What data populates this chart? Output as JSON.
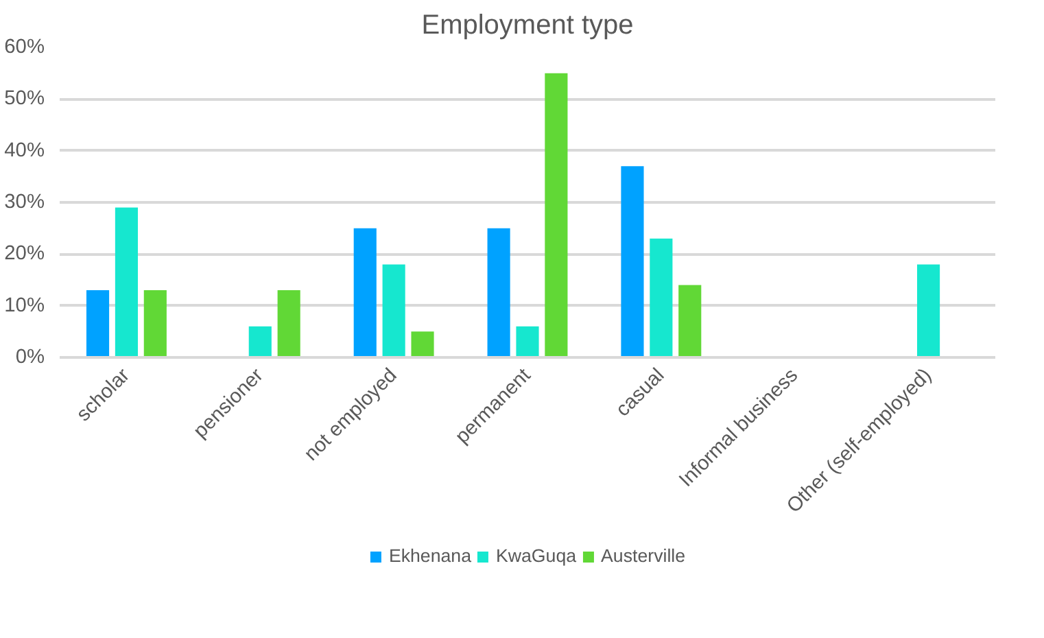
{
  "chart_data": {
    "type": "bar",
    "title": "Employment type",
    "categories": [
      "scholar",
      "pensioner",
      "not employed",
      "permanent",
      "casual",
      "Informal business",
      "Other (self-employed)"
    ],
    "series": [
      {
        "name": "Ekhenana",
        "color": "#00a2ff",
        "values": [
          13,
          0,
          25,
          25,
          37,
          0,
          0
        ]
      },
      {
        "name": "KwaGuqa",
        "color": "#16e7cf",
        "values": [
          29,
          6,
          18,
          6,
          23,
          0,
          18
        ]
      },
      {
        "name": "Austerville",
        "color": "#61d836",
        "values": [
          13,
          13,
          5,
          55,
          14,
          0,
          0
        ]
      }
    ],
    "ylim": [
      0,
      60
    ],
    "yticks": [
      {
        "value": 0,
        "label": "0%"
      },
      {
        "value": 10,
        "label": "10%"
      },
      {
        "value": 20,
        "label": "20%"
      },
      {
        "value": 30,
        "label": "30%"
      },
      {
        "value": 40,
        "label": "40%"
      },
      {
        "value": 50,
        "label": "50%"
      },
      {
        "value": 60,
        "label": "60%"
      }
    ],
    "grid": "y",
    "legend": "bottom"
  }
}
